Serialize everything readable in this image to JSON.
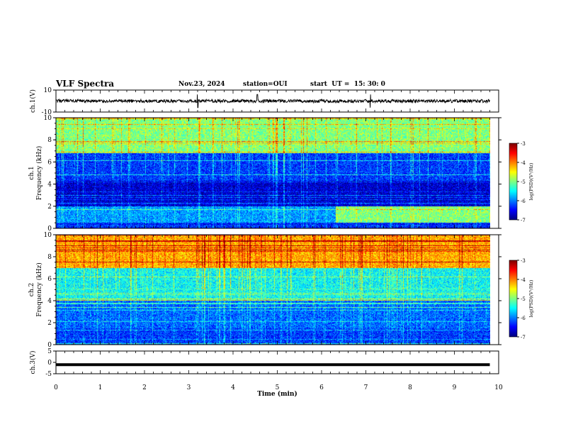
{
  "header": {
    "title": "VLF Spectra",
    "date": "Nov.23, 2024",
    "station": "station=OUI",
    "start": "start  UT =  15: 30: 0"
  },
  "chart_data": [
    {
      "type": "line",
      "panel": "ch1-waveform",
      "ylabel": "ch.1(V)",
      "ylim": [
        -10,
        10
      ],
      "y_ticks": [
        "10",
        "-10"
      ],
      "trace": "noisy signal around 0 V, amplitude about +/-1.5 V, with brief spikes near 3.3 and 4.5 min"
    },
    {
      "type": "heatmap",
      "panel": "ch1-spectrogram",
      "ylabel_lines": [
        "ch.1",
        "Frequency (kHz)"
      ],
      "x_range_min": [
        0,
        9.8
      ],
      "ylim": [
        0,
        10
      ],
      "y_ticks": [
        "0",
        "2",
        "4",
        "6",
        "8",
        "10"
      ],
      "colorbar": {
        "label": "log(PSD)(V²/Hz)",
        "range": [
          -7,
          -3
        ],
        "ticks": [
          "-3",
          "-4",
          "-5",
          "-6",
          "-7"
        ]
      },
      "bands_log_psd": [
        {
          "freq_khz": [
            0,
            0.5
          ],
          "level": -6.4
        },
        {
          "freq_khz": [
            0.5,
            2.0
          ],
          "level": -5.9,
          "note": "brightens to about -5.0 after 6.3 min"
        },
        {
          "freq_khz": [
            2.0,
            4.3
          ],
          "level": -6.7
        },
        {
          "freq_khz": [
            4.3,
            6.8
          ],
          "level": -6.3
        },
        {
          "freq_khz": [
            6.8,
            10.0
          ],
          "level": -5.0
        }
      ]
    },
    {
      "type": "heatmap",
      "panel": "ch2-spectrogram",
      "ylabel_lines": [
        "ch.2",
        "Frequency (kHz)"
      ],
      "x_range_min": [
        0,
        9.8
      ],
      "ylim": [
        0,
        10
      ],
      "y_ticks": [
        "0",
        "2",
        "4",
        "6",
        "8",
        "10"
      ],
      "colorbar": {
        "label": "log(PSD)(V²/Hz)",
        "range": [
          -7,
          -3
        ],
        "ticks": [
          "-3",
          "-4",
          "-5",
          "-6",
          "-7"
        ]
      },
      "bands_log_psd": [
        {
          "freq_khz": [
            0,
            1.5
          ],
          "level": -6.3
        },
        {
          "freq_khz": [
            1.5,
            4.0
          ],
          "level": -6.1
        },
        {
          "freq_khz": [
            4.0,
            7.0
          ],
          "level": -5.5
        },
        {
          "freq_khz": [
            7.0,
            10.0
          ],
          "level": -4.2
        }
      ]
    },
    {
      "type": "line",
      "panel": "ch3-waveform",
      "ylabel": "ch.3(V)",
      "ylim": [
        -5,
        5
      ],
      "y_ticks": [
        "5",
        "0",
        "-5"
      ],
      "trace": "thick flat trace near -1 V"
    }
  ],
  "x_axis": {
    "label": "Time (min)",
    "range": [
      0,
      10
    ],
    "ticks": [
      "0",
      "1",
      "2",
      "3",
      "4",
      "5",
      "6",
      "7",
      "8",
      "9",
      "10"
    ]
  }
}
